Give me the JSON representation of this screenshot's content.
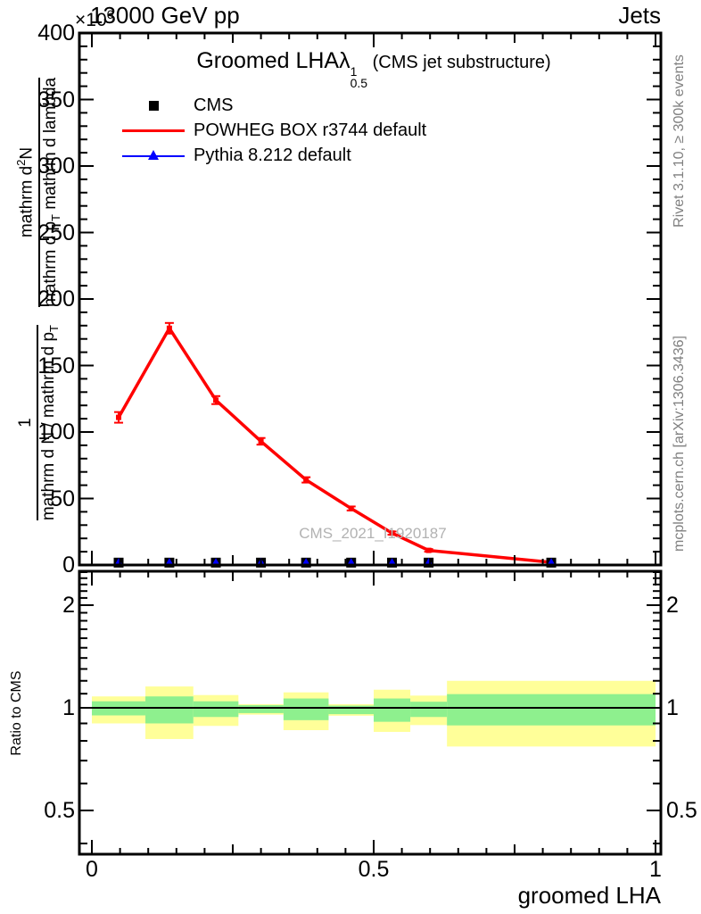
{
  "header": {
    "beam": "13000 GeV pp",
    "multiplier": {
      "prefix": "×10",
      "exp": "6"
    },
    "analysis": "Jets"
  },
  "title": {
    "main": "Groomed LHA",
    "lambda": "λ",
    "sup": "1",
    "sub": "0.5",
    "suffix": " (CMS jet substructure)"
  },
  "legend": [
    {
      "label": "CMS",
      "marker": "black-square"
    },
    {
      "label": "POWHEG BOX r3744 default",
      "marker": "red-line"
    },
    {
      "label": "Pythia 8.212 default",
      "marker": "blue-triangle-line"
    }
  ],
  "watermark": "CMS_2021_I1920187",
  "right_margin": {
    "top": "Rivet 3.1.10, ≥ 300k events",
    "bottom": "mcplots.cern.ch [arXiv:1306.3436]"
  },
  "y_axis": {
    "frac1": {
      "num": "1",
      "den_pre": "mathrm d N / mathrm d p",
      "den_sub": "T"
    },
    "frac2": {
      "num_pre": "mathrm d",
      "num_sup": "2",
      "num_post": "N",
      "den_pre": "mathrm d p",
      "den_sub": "T",
      "den_post": " mathrm d lambda"
    }
  },
  "ratio_axis_label": "Ratio to CMS",
  "x_axis_label": "groomed LHA",
  "colors": {
    "powheg": "#ff0000",
    "pythia": "#0000ff",
    "cms": "#000000",
    "band_yellow": "#ffff99",
    "band_green": "#8ef08e",
    "frame": "#000000"
  },
  "chart_data": {
    "type": "line",
    "title": "Groomed LHA lambda^1_0.5 (CMS jet substructure)",
    "xlabel": "groomed LHA",
    "ylabel": "1/(mathrm d N/mathrm d p_T) mathrm d^2N/(mathrm d p_T mathrm d lambda)",
    "y_multiplier": "x10^6",
    "xlim": [
      -0.022,
      1.01
    ],
    "x_ticks": [
      0,
      0.5,
      1
    ],
    "x_minor_step": 0.05,
    "x_medium_ticks": [
      0.25,
      0.75
    ],
    "bin_edges": [
      0,
      0.095,
      0.18,
      0.26,
      0.34,
      0.42,
      0.5,
      0.565,
      0.63,
      1.0
    ],
    "bin_centers": [
      0.0475,
      0.1375,
      0.22,
      0.3,
      0.38,
      0.46,
      0.5325,
      0.5975,
      0.815
    ],
    "main_panel": {
      "ylim": [
        0,
        400
      ],
      "yticks_major": [
        0,
        50,
        100,
        150,
        200,
        250,
        300,
        350,
        400
      ],
      "ytick_minor_step": 10,
      "series": [
        {
          "name": "CMS",
          "style": "square-marker",
          "values": [
            1.8,
            1.8,
            1.8,
            1.8,
            1.8,
            1.8,
            1.8,
            1.8,
            1.8
          ]
        },
        {
          "name": "POWHEG BOX r3744 default",
          "style": "line-with-markers",
          "values": [
            111,
            178,
            124,
            93,
            64,
            42.5,
            24,
            11,
            2
          ],
          "yerr": [
            4,
            4,
            3,
            2.5,
            2,
            1.5,
            1.2,
            1,
            0.5
          ]
        },
        {
          "name": "Pythia 8.212 default",
          "style": "triangle-marker",
          "values": [
            2.3,
            2.3,
            2.3,
            2.3,
            2.3,
            2.3,
            2.3,
            2.3,
            2.3
          ]
        }
      ]
    },
    "ratio_panel": {
      "label": "Ratio to CMS",
      "scale": "log",
      "ylim": [
        0.372,
        2.515
      ],
      "yticks": [
        0.5,
        1,
        2
      ],
      "reference_line": 1,
      "bands": [
        {
          "bin": [
            0,
            0.095
          ],
          "yellow": [
            0.9,
            1.08
          ],
          "green": [
            0.95,
            1.045
          ]
        },
        {
          "bin": [
            0.095,
            0.18
          ],
          "yellow": [
            0.81,
            1.155
          ],
          "green": [
            0.9,
            1.08
          ]
        },
        {
          "bin": [
            0.18,
            0.26
          ],
          "yellow": [
            0.885,
            1.09
          ],
          "green": [
            0.94,
            1.045
          ]
        },
        {
          "bin": [
            0.26,
            0.34
          ],
          "yellow": [
            0.955,
            1.025
          ],
          "green": [
            0.965,
            1.018
          ]
        },
        {
          "bin": [
            0.34,
            0.42
          ],
          "yellow": [
            0.86,
            1.11
          ],
          "green": [
            0.92,
            1.065
          ]
        },
        {
          "bin": [
            0.42,
            0.5
          ],
          "yellow": [
            0.948,
            1.025
          ],
          "green": [
            0.958,
            1.015
          ]
        },
        {
          "bin": [
            0.5,
            0.565
          ],
          "yellow": [
            0.85,
            1.13
          ],
          "green": [
            0.91,
            1.065
          ]
        },
        {
          "bin": [
            0.565,
            0.63
          ],
          "yellow": [
            0.89,
            1.086
          ],
          "green": [
            0.94,
            1.042
          ]
        },
        {
          "bin": [
            0.63,
            1.0
          ],
          "yellow": [
            0.77,
            1.2
          ],
          "green": [
            0.888,
            1.097
          ]
        }
      ]
    }
  }
}
